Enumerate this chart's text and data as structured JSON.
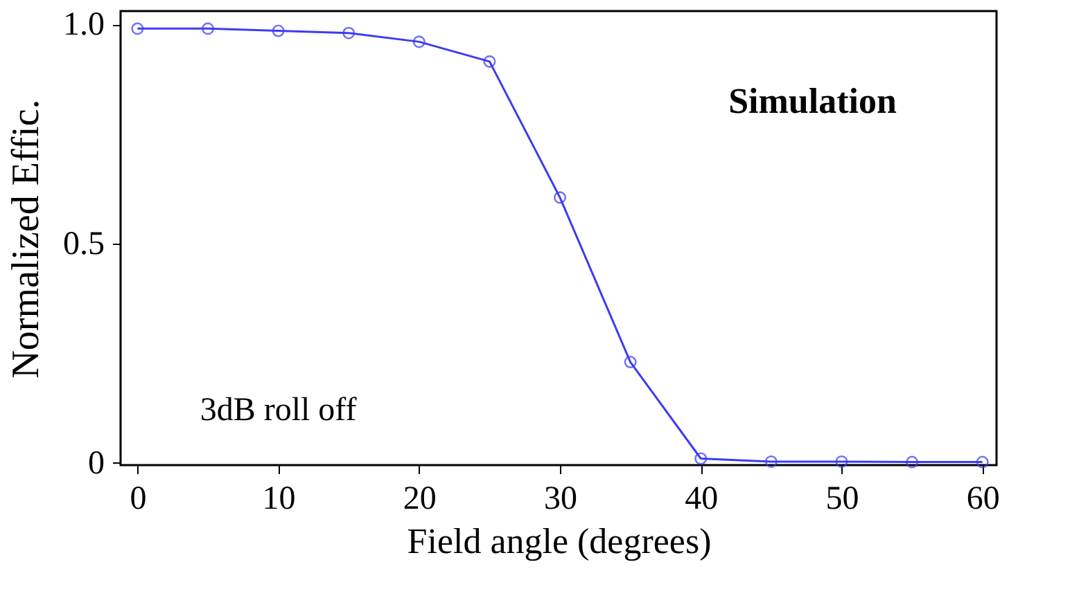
{
  "chart_data": {
    "type": "line",
    "xlabel": "Field angle (degrees)",
    "ylabel": "Normalized Effic.",
    "x": [
      0,
      5,
      10,
      15,
      20,
      25,
      30,
      35,
      40,
      45,
      50,
      55,
      60
    ],
    "series": [
      {
        "color": "#3c3cf0",
        "values": [
          0.99,
          0.99,
          0.985,
          0.98,
          0.96,
          0.915,
          0.605,
          0.23,
          0.01,
          0.003,
          0.003,
          0.002,
          0.002
        ]
      }
    ],
    "xlim": [
      -1.2,
      61
    ],
    "ylim": [
      -0.005,
      1.03
    ],
    "xticks": [
      0,
      10,
      20,
      30,
      40,
      50,
      60
    ],
    "yticks": [
      0,
      0.5,
      {
        "value": 1,
        "label": "1.0"
      }
    ],
    "annotations": [
      "Simulation",
      "3dB roll off"
    ],
    "marker": "circle",
    "line_style": "solid",
    "grid": false
  }
}
